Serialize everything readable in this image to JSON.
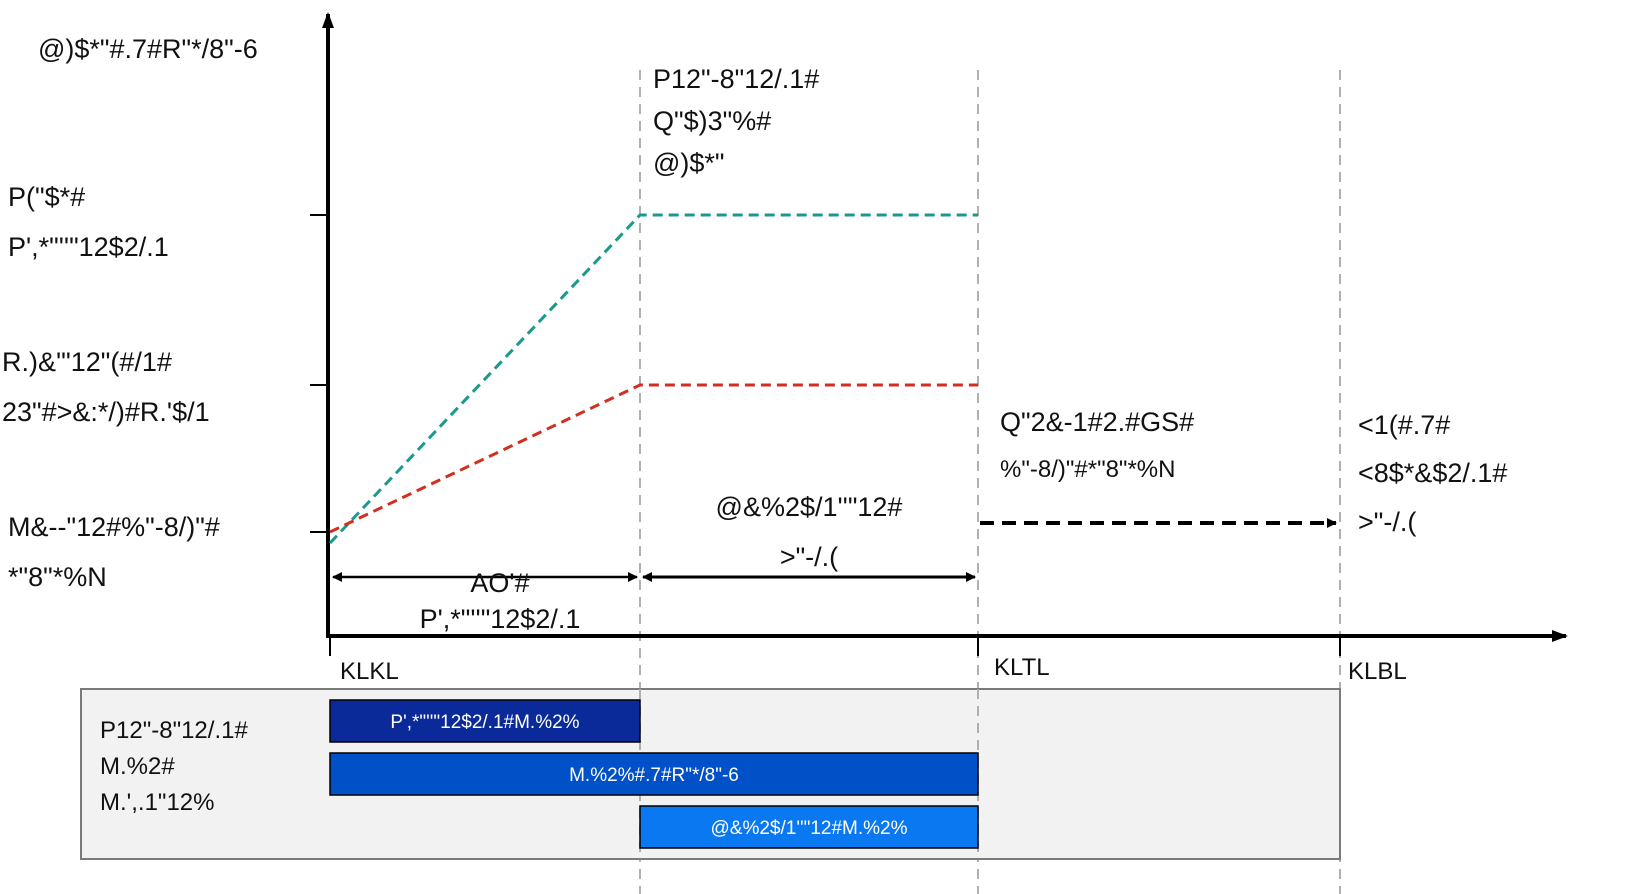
{
  "y_axis": {
    "title": "@)$*\"#.7#R\"*/8\"-6",
    "levels": [
      {
        "lines": [
          "P(\"$*#",
          "P',*\"''\"12$2/.1"
        ]
      },
      {
        "lines": [
          "R.)&'\"12\"(#/1#",
          "23\"#>&:*/)#R.'$/1"
        ]
      },
      {
        "lines": [
          "M&--\"12#%\"-8/)\"#",
          "*\"8\"*%N"
        ]
      }
    ]
  },
  "x_axis": {
    "ticks": [
      "KLKL",
      "KLTL",
      "KLBL"
    ]
  },
  "top_label": {
    "lines": [
      "P12\"-8\"12/.1#",
      "Q\"$)3\"%#",
      "@)$*\""
    ]
  },
  "spans": {
    "first": {
      "lines": [
        "AO'#",
        "P',*\"''\"12$2/.1"
      ]
    },
    "second": {
      "lines": [
        "@&%2$/1''\"12#",
        ">\"-/.("
      ]
    },
    "third": {
      "lines": [
        "Q\"2&-1#2.#GS#",
        "%\"-8/)\"#*\"8\"*%N"
      ]
    },
    "fourth": {
      "lines": [
        "<1(#.7#",
        "<8$*&$2/.1#",
        ">\"-/.("
      ]
    }
  },
  "legend_box": {
    "lines": [
      "P12\"-8\"12/.1#",
      "M.%2#",
      "M.',.1\"12%"
    ],
    "bars": [
      {
        "label": "P',*\"''\"12$2/.1#M.%2%",
        "color": "#0a2a9a"
      },
      {
        "label": "M.%2%#.7#R\"*/8\"-6",
        "color": "#0050c8"
      },
      {
        "label": "@&%2$/1''\"12#M.%2%",
        "color": "#0a78f0"
      }
    ]
  },
  "colors": {
    "upper_line": "#1a9a8a",
    "lower_line": "#d03020",
    "axis": "#000000",
    "guide": "#b0b0b0",
    "box_fill": "#f2f2f2",
    "box_border": "#7a7a7a"
  }
}
